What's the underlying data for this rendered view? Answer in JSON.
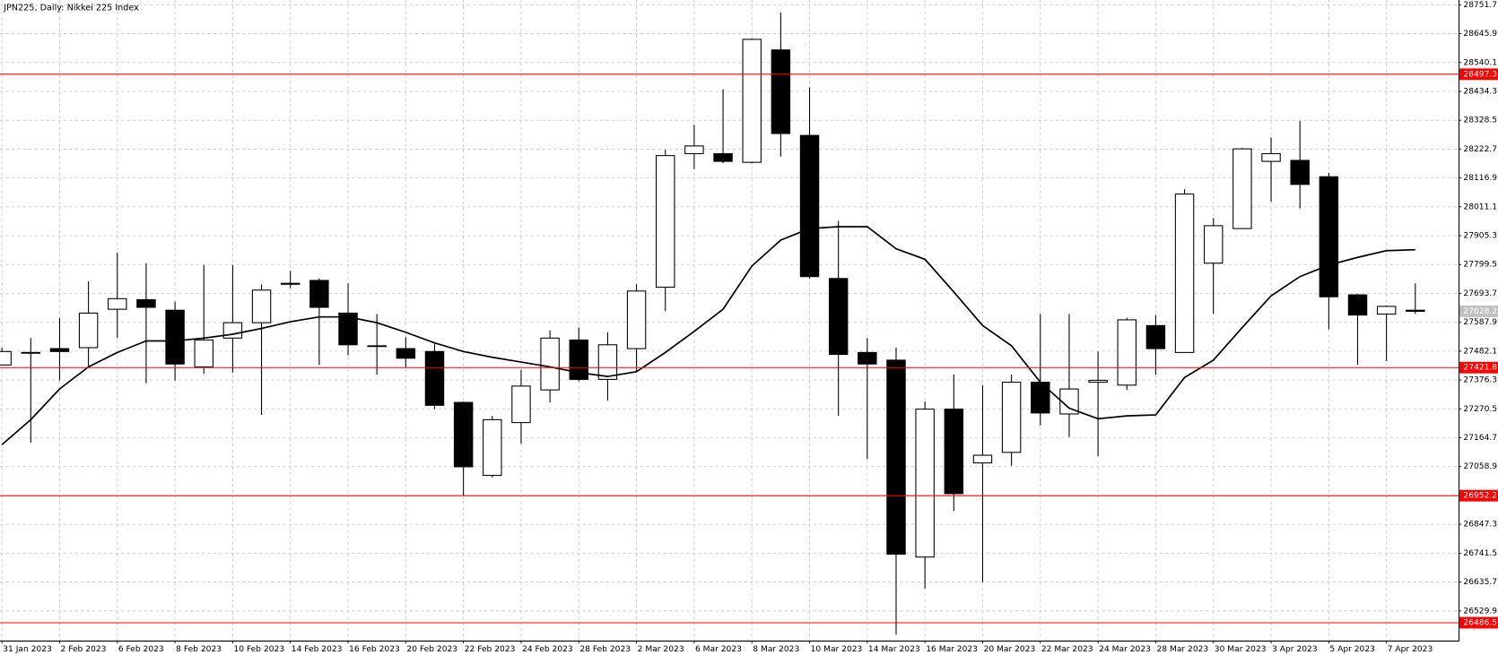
{
  "chart_data": {
    "type": "candlestick",
    "title": "JPN225, Daily:  Nikkei 225 Index",
    "categories": [
      "31 Jan 2023",
      null,
      "2 Feb 2023",
      null,
      "6 Feb 2023",
      null,
      "8 Feb 2023",
      null,
      "10 Feb 2023",
      null,
      "14 Feb 2023",
      null,
      "16 Feb 2023",
      null,
      "20 Feb 2023",
      null,
      "22 Feb 2023",
      null,
      "24 Feb 2023",
      null,
      "28 Feb 2023",
      null,
      "2 Mar 2023",
      null,
      "6 Mar 2023",
      null,
      "8 Mar 2023",
      null,
      "10 Mar 2023",
      null,
      "14 Mar 2023",
      null,
      "16 Mar 2023",
      null,
      "20 Mar 2023",
      null,
      "22 Mar 2023",
      null,
      "24 Mar 2023",
      null,
      "28 Mar 2023",
      null,
      "30 Mar 2023",
      null,
      "3 Apr 2023",
      null,
      "5 Apr 2023",
      null,
      "7 Apr 2023",
      null
    ],
    "open": [
      27431.4,
      27477.2,
      27491.3,
      27494.8,
      27635.6,
      27670.8,
      27632.1,
      27424.4,
      27530.0,
      27586.4,
      27727.2,
      27741.3,
      27621.6,
      27501.8,
      27491.3,
      27480.7,
      27294.1,
      27026.6,
      27220.2,
      27339.9,
      27523.0,
      27378.6,
      27491.3,
      27716.6,
      28206.0,
      28206.0,
      28174.3,
      28586.2,
      28272.9,
      27748.3,
      27477.2,
      27449.0,
      26727.3,
      27269.5,
      27072.3,
      27111.0,
      27368.1,
      27251.9,
      27368.1,
      27357.5,
      27575.8,
      27477.2,
      27804.6,
      27931.4,
      28177.8,
      28181.3,
      28121.5,
      27688.4,
      27618.0,
      27632.1
    ],
    "high": [
      27494.8,
      27530.0,
      27603.9,
      27737.7,
      27843.4,
      27804.6,
      27663.8,
      27797.6,
      27797.6,
      27727.2,
      27776.5,
      27748.3,
      27730.7,
      27618.0,
      27533.5,
      27508.9,
      27297.6,
      27244.8,
      27413.8,
      27558.2,
      27568.7,
      27551.1,
      27727.2,
      28220.1,
      28311.6,
      28441.9,
      28628.5,
      28723.5,
      28448.9,
      27959.5,
      27530.0,
      27494.8,
      27297.6,
      27396.2,
      27357.5,
      27396.2,
      27618.0,
      27618.0,
      27480.7,
      27603.9,
      27614.5,
      28075.7,
      27970.1,
      28227.1,
      28265.8,
      28325.7,
      28135.6,
      27692.0,
      27649.7,
      27730.7
    ],
    "low": [
      27431.4,
      27146.3,
      27375.1,
      27420.9,
      27530.0,
      27364.5,
      27375.1,
      27399.8,
      27403.3,
      27248.3,
      27713.1,
      27431.4,
      27466.6,
      27396.2,
      27420.9,
      27269.5,
      26952.6,
      27019.5,
      27142.7,
      27294.1,
      27371.6,
      27301.2,
      27403.3,
      27628.6,
      28149.7,
      28170.8,
      28170.8,
      28195.4,
      27748.3,
      27244.8,
      27086.4,
      26442.1,
      26611.1,
      26896.3,
      26635.8,
      27061.8,
      27209.6,
      27167.4,
      27097.0,
      27339.9,
      27396.2,
      27477.2,
      27618.0,
      27931.4,
      28030.0,
      28005.3,
      27561.7,
      27431.4,
      27445.5,
      27618.0
    ],
    "close": [
      27480.7,
      27477.2,
      27480.7,
      27621.6,
      27674.4,
      27642.7,
      27435.0,
      27523.0,
      27586.4,
      27706.0,
      27730.7,
      27642.7,
      27505.4,
      27501.8,
      27456.1,
      27283.6,
      27058.2,
      27230.8,
      27354.0,
      27530.0,
      27378.6,
      27505.4,
      27702.5,
      28198.9,
      28234.2,
      28177.8,
      28625.0,
      28279.9,
      27755.3,
      27470.2,
      27435.0,
      26737.9,
      27269.5,
      26959.7,
      27100.5,
      27368.1,
      27255.4,
      27343.4,
      27375.1,
      27596.9,
      27491.3,
      28058.1,
      27941.9,
      28223.6,
      28206.0,
      28093.3,
      27681.4,
      27614.5,
      27646.2,
      27628.2
    ],
    "up_color": "#ffffff",
    "down_color": "#000000",
    "series": [
      {
        "color": "#000000",
        "values": [
          27139.2,
          27230.8,
          27343.4,
          27424.4,
          27477.2,
          27519.5,
          27519.5,
          27530.0,
          27544.1,
          27565.2,
          27589.9,
          27607.5,
          27607.5,
          27586.4,
          27551.1,
          27512.4,
          27480.7,
          27459.6,
          27442.0,
          27424.4,
          27403.3,
          27389.2,
          27406.8,
          27477.2,
          27554.7,
          27635.6,
          27794.1,
          27889.1,
          27931.4,
          27938.4,
          27938.4,
          27857.4,
          27818.7,
          27699.0,
          27575.8,
          27501.8,
          27368.1,
          27273.0,
          27234.3,
          27244.8,
          27248.3,
          27385.7,
          27449.0,
          27568.7,
          27684.9,
          27755.3,
          27797.6,
          27825.8,
          27850.4,
          27853.9
        ]
      }
    ],
    "levels": [
      28497.3,
      27421.8,
      26952.2,
      26486.5
    ],
    "level_color": "#ff0000",
    "ylim": [
      26421.0,
      28769.3
    ],
    "yticks": [
      28751.7,
      28645.9,
      28540.1,
      28434.3,
      28328.5,
      28222.7,
      28116.9,
      28011.1,
      27905.3,
      27799.5,
      27693.7,
      27587.9,
      27482.1,
      27376.3,
      27270.5,
      27164.7,
      27058.9,
      26847.3,
      26741.5,
      26635.7,
      26529.9
    ],
    "grid": true
  }
}
